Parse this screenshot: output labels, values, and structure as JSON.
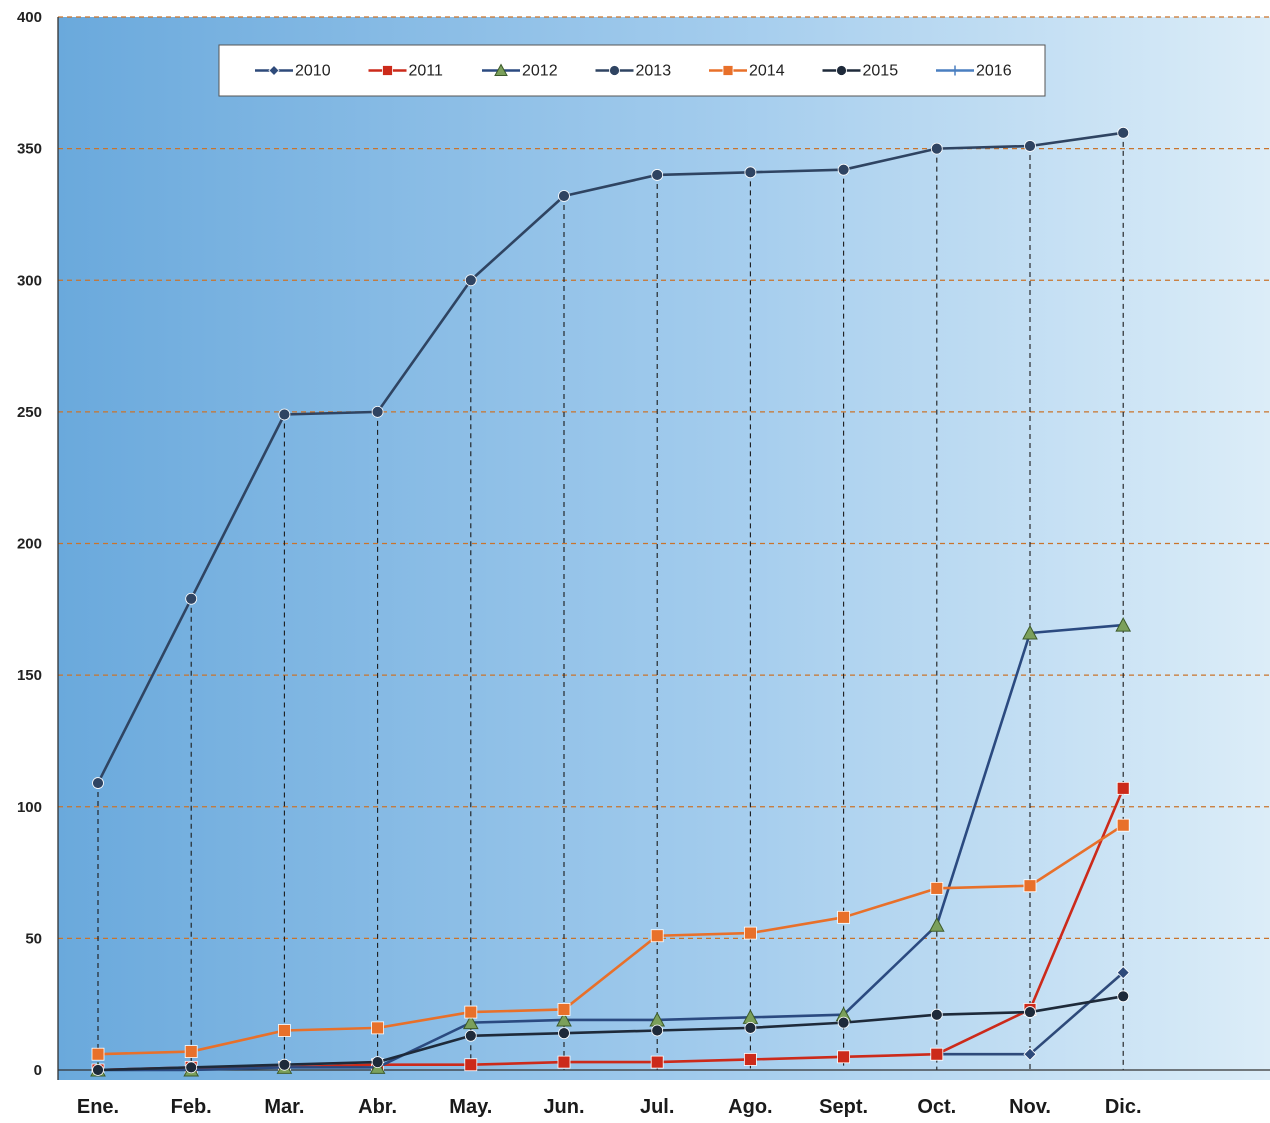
{
  "chart_data": {
    "type": "line",
    "title": "",
    "xlabel": "",
    "ylabel": "",
    "categories": [
      "Ene.",
      "Feb.",
      "Mar.",
      "Abr.",
      "May.",
      "Jun.",
      "Jul.",
      "Ago.",
      "Sept.",
      "Oct.",
      "Nov.",
      "Dic."
    ],
    "ylim": [
      0,
      400
    ],
    "yticks": [
      0,
      50,
      100,
      150,
      200,
      250,
      300,
      350,
      400
    ],
    "grid": "horizontal dashed lines at y ticks; vertical dashed drop lines from the highest point of each month",
    "legend_position": "top",
    "background": "blue gradient",
    "series": [
      {
        "name": "2010",
        "color": "#2e4a7a",
        "marker": "diamond",
        "values": [
          null,
          null,
          null,
          null,
          null,
          null,
          null,
          null,
          null,
          6,
          6,
          37
        ]
      },
      {
        "name": "2011",
        "color": "#cc2a1a",
        "marker": "square",
        "values": [
          0,
          1,
          1,
          2,
          2,
          3,
          3,
          4,
          5,
          6,
          23,
          107
        ]
      },
      {
        "name": "2012",
        "color": "#2b4a80",
        "marker": "triangle",
        "values": [
          0,
          0,
          1,
          1,
          18,
          19,
          19,
          20,
          21,
          55,
          166,
          169
        ]
      },
      {
        "name": "2013",
        "color": "#2f4462",
        "marker": "circle",
        "values": [
          109,
          179,
          249,
          250,
          300,
          332,
          340,
          341,
          342,
          350,
          351,
          356
        ]
      },
      {
        "name": "2014",
        "color": "#e8702a",
        "marker": "square",
        "values": [
          6,
          7,
          15,
          16,
          22,
          23,
          51,
          52,
          58,
          69,
          70,
          93
        ]
      },
      {
        "name": "2015",
        "color": "#1e2a3a",
        "marker": "circle",
        "values": [
          0,
          1,
          2,
          3,
          13,
          14,
          15,
          16,
          18,
          21,
          22,
          28
        ]
      },
      {
        "name": "2016",
        "color": "#4a7fc0",
        "marker": "plus",
        "values": [
          null,
          null,
          null,
          null,
          null,
          null,
          null,
          null,
          null,
          null,
          null,
          null
        ]
      }
    ]
  }
}
